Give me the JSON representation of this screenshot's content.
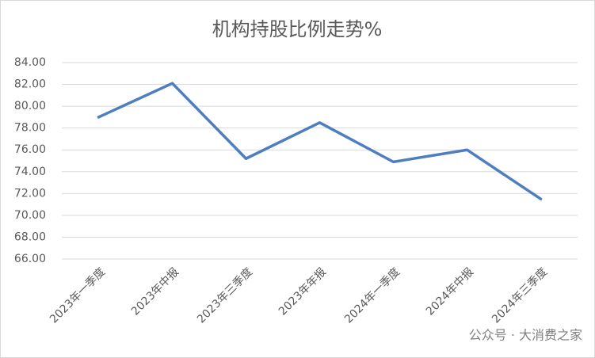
{
  "chart_data": {
    "type": "line",
    "title": "机构持股比例走势%",
    "categories": [
      "2023年一季度",
      "2023年中报",
      "2023年三季度",
      "2023年年报",
      "2024年一季度",
      "2024年中报",
      "2024年三季度"
    ],
    "series": [
      {
        "name": "机构持股比例",
        "color": "#4f7ec0",
        "values": [
          79.0,
          82.1,
          75.2,
          78.5,
          74.9,
          76.0,
          71.5
        ]
      }
    ],
    "ylim": [
      66,
      84
    ],
    "yticks": [
      {
        "value": 66,
        "label": "66.00"
      },
      {
        "value": 68,
        "label": "68.00"
      },
      {
        "value": 70,
        "label": "70.00"
      },
      {
        "value": 72,
        "label": "72.00"
      },
      {
        "value": 74,
        "label": "74.00"
      },
      {
        "value": 76,
        "label": "76.00"
      },
      {
        "value": 78,
        "label": "78.00"
      },
      {
        "value": 80,
        "label": "80.00"
      },
      {
        "value": 82,
        "label": "82.00"
      },
      {
        "value": 84,
        "label": "84.00"
      }
    ],
    "grid": true,
    "watermark": "公众号 · 大消费之家"
  }
}
